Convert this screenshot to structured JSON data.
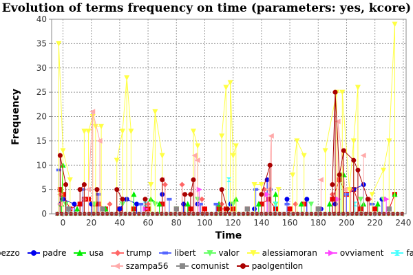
{
  "chart_data": {
    "type": "scatter",
    "title": "Evolution of terms frequency on time (parameters: yes, kcore)",
    "xlabel": "Time",
    "ylabel": "Frequency",
    "xlim": [
      -8,
      242
    ],
    "ylim": [
      0,
      40
    ],
    "x_ticks": [
      0,
      20,
      40,
      60,
      80,
      100,
      120,
      140,
      160,
      180,
      200,
      220,
      240
    ],
    "y_ticks": [
      0,
      5,
      10,
      15,
      20,
      25,
      30,
      35,
      40
    ],
    "grid": true,
    "legend_position": "bottom",
    "series": [
      {
        "name": "pezzo",
        "color": "#ee0000",
        "marker": "square",
        "x": [
          -2,
          0,
          5,
          12,
          15,
          18,
          22,
          25,
          30,
          40,
          50,
          60,
          70,
          80,
          90,
          100,
          110,
          115,
          120,
          130,
          140,
          145,
          150,
          160,
          170,
          180,
          190,
          195,
          200,
          205,
          210,
          220,
          230,
          234
        ],
        "y": [
          5,
          4,
          1,
          2,
          3,
          3,
          2,
          2,
          1,
          1,
          1,
          1,
          2,
          1,
          1,
          1,
          1,
          1,
          1,
          1,
          2,
          3,
          1,
          1,
          2,
          1,
          3,
          7,
          4,
          5,
          1,
          1,
          1,
          4
        ]
      },
      {
        "name": "padre",
        "color": "#0000ee",
        "marker": "circle",
        "x": [
          -2,
          0,
          8,
          20,
          40,
          45,
          52,
          70,
          85,
          95,
          118,
          135,
          144,
          158,
          172,
          182,
          192,
          205,
          212,
          225
        ],
        "y": [
          2,
          3,
          2,
          2,
          1,
          3,
          2,
          4,
          2,
          2,
          2,
          1,
          7,
          3,
          3,
          1,
          2,
          5,
          6,
          3
        ]
      },
      {
        "name": "usa",
        "color": "#00ee00",
        "marker": "triangle",
        "x": [
          -1,
          0,
          10,
          30,
          50,
          62,
          68,
          88,
          110,
          122,
          138,
          150,
          168,
          188,
          198,
          212,
          222,
          234
        ],
        "y": [
          2,
          10,
          1,
          1,
          4,
          3,
          2,
          2,
          2,
          3,
          2,
          4,
          2,
          2,
          8,
          2,
          2,
          4
        ]
      },
      {
        "name": "trump",
        "color": "#ff6666",
        "marker": "diamond",
        "x": [
          -2,
          15,
          33,
          60,
          72,
          84,
          98,
          112,
          142,
          164,
          190,
          203,
          216
        ],
        "y": [
          4,
          3,
          2,
          2,
          6,
          6,
          3,
          2,
          5,
          2,
          4,
          5,
          3
        ]
      },
      {
        "name": "libert",
        "color": "#5566ff",
        "marker": "rect",
        "x": [
          -3,
          14,
          25,
          55,
          75,
          97,
          108,
          136,
          146,
          158,
          200,
          218
        ],
        "y": [
          9,
          5,
          4,
          2,
          3,
          2,
          2,
          5,
          5,
          2,
          4,
          2
        ]
      },
      {
        "name": "valor",
        "color": "#66ff66",
        "marker": "triangle-down",
        "x": [
          2,
          22,
          42,
          65,
          80,
          95,
          120,
          150,
          175,
          196,
          210,
          226
        ],
        "y": [
          2,
          2,
          2,
          2,
          1,
          3,
          2,
          2,
          2,
          8,
          3,
          3
        ]
      },
      {
        "name": "alessiamoran",
        "color": "#ffff44",
        "marker": "triangle-down",
        "x": [
          -3,
          0,
          5,
          15,
          18,
          21,
          23,
          27,
          38,
          42,
          45,
          48,
          62,
          65,
          70,
          92,
          95,
          112,
          115,
          118,
          120,
          122,
          135,
          140,
          152,
          162,
          165,
          170,
          185,
          193,
          197,
          202,
          205,
          208,
          218,
          226,
          230,
          234
        ],
        "y": [
          35,
          13,
          7,
          17,
          17,
          20,
          18,
          18,
          11,
          17,
          28,
          17,
          6,
          21,
          12,
          17,
          14,
          16,
          26,
          27,
          12,
          14,
          6,
          6,
          5,
          8,
          15,
          12,
          13,
          25,
          25,
          5,
          15,
          26,
          4,
          9,
          15,
          39
        ]
      },
      {
        "name": "ovviament",
        "color": "#ff44ff",
        "marker": "triangle-right",
        "x": [
          5,
          28,
          58,
          96,
          144,
          194,
          228
        ],
        "y": [
          1,
          1,
          1,
          5,
          4,
          3,
          3
        ]
      },
      {
        "name": "fascist",
        "color": "#44ffff",
        "marker": "hourglass",
        "x": [
          3,
          58,
          117,
          150,
          206
        ],
        "y": [
          1,
          2,
          7,
          2,
          2
        ]
      },
      {
        "name": "szampa56",
        "color": "#ffaaaa",
        "marker": "triangle-left",
        "x": [
          -2,
          18,
          21,
          26,
          70,
          93,
          95,
          145,
          147,
          182,
          194,
          199,
          212
        ],
        "y": [
          2,
          5,
          21,
          15,
          7,
          12,
          11,
          5,
          16,
          7,
          19,
          5,
          12
        ]
      },
      {
        "name": "comunist",
        "color": "#888888",
        "marker": "square",
        "x": [
          4,
          28,
          80,
          130,
          180,
          230
        ],
        "y": [
          1,
          1,
          1,
          1,
          1,
          1
        ]
      },
      {
        "name": "paolgentilon",
        "color": "#aa0000",
        "marker": "circle",
        "x": [
          -2,
          2,
          12,
          15,
          24,
          38,
          42,
          58,
          70,
          86,
          90,
          92,
          112,
          116,
          140,
          146,
          190,
          192,
          195,
          198,
          205,
          208,
          215
        ],
        "y": [
          12,
          6,
          5,
          6,
          5,
          5,
          3,
          3,
          7,
          4,
          4,
          7,
          5,
          1,
          4,
          10,
          6,
          25,
          8,
          13,
          11,
          9,
          3
        ]
      }
    ]
  }
}
